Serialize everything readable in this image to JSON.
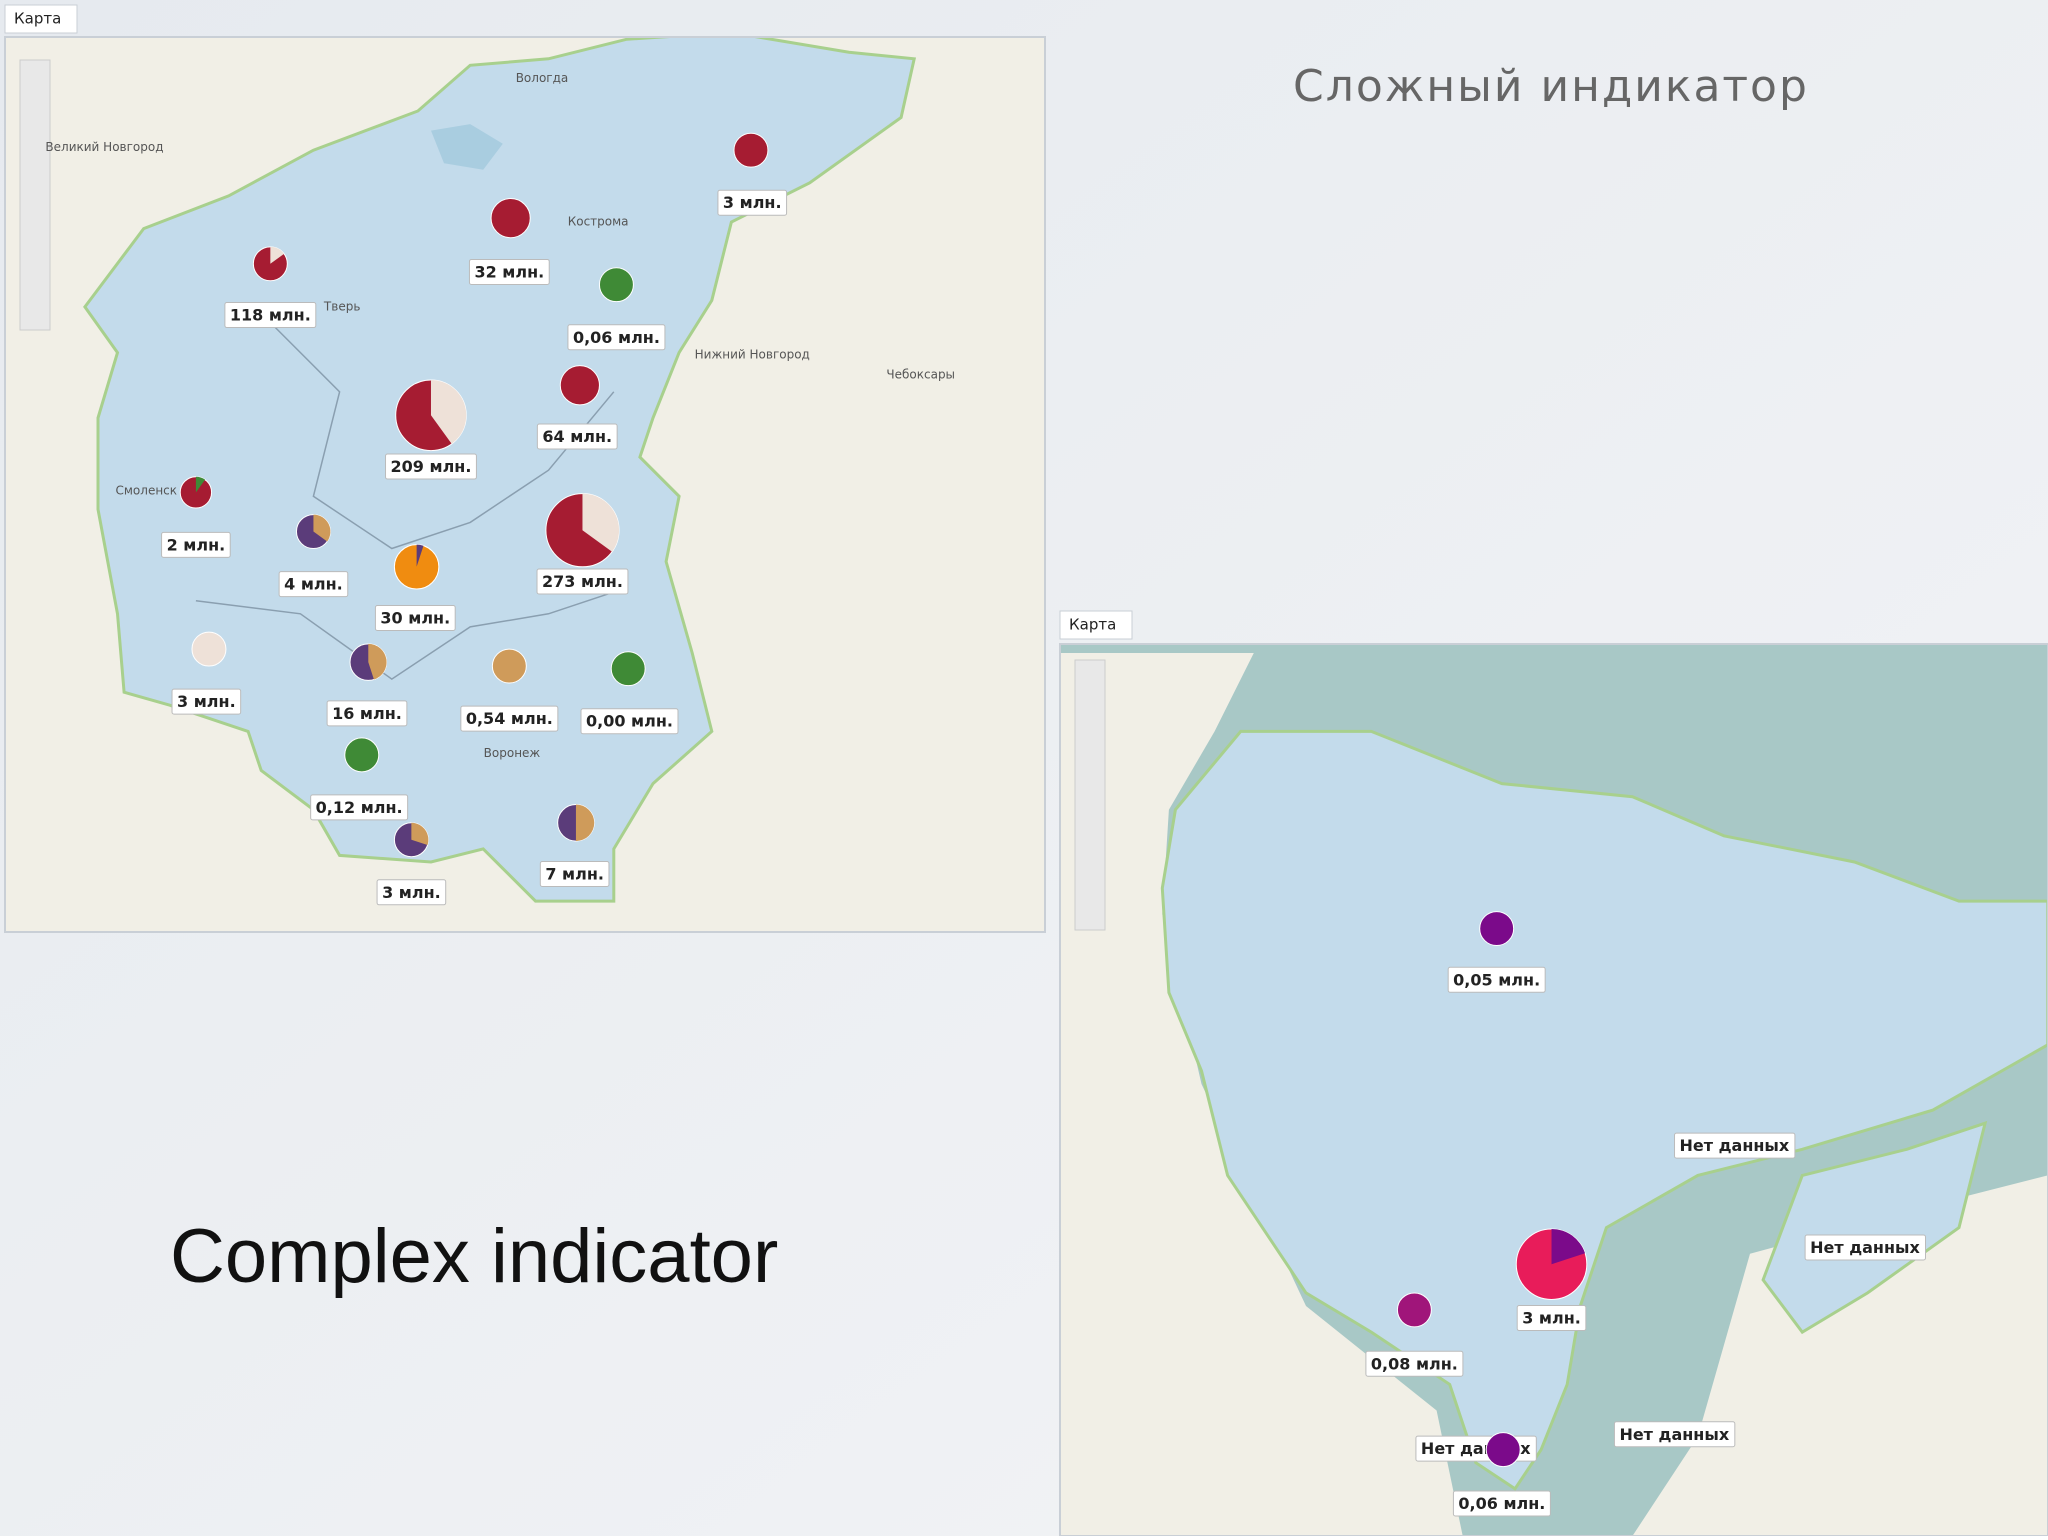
{
  "title_ru": "Сложный индикатор",
  "title_en": "Complex indicator",
  "map1": {
    "tab": "Карта",
    "places": [
      "Вологда",
      "Великий Новгород",
      "Тверь",
      "Кострома",
      "Смоленск",
      "Нижний Новгород",
      "Чебоксары",
      "Воронеж"
    ],
    "markers": [
      "3 млн.",
      "32 млн.",
      "118 млн.",
      "0,06 млн.",
      "64 млн.",
      "209 млн.",
      "2 млн.",
      "4 млн.",
      "273 млн.",
      "30 млн.",
      "3 млн.",
      "16 млн.",
      "0,54 млн.",
      "0,00 млн.",
      "0,12 млн.",
      "7 млн.",
      "3 млн."
    ]
  },
  "map2": {
    "tab": "Карта",
    "markers": [
      "0,05 млн.",
      "Нет данных",
      "3 млн.",
      "Нет данных",
      "0,08 млн.",
      "Нет данных",
      "Нет данных",
      "0,06 млн."
    ]
  }
}
